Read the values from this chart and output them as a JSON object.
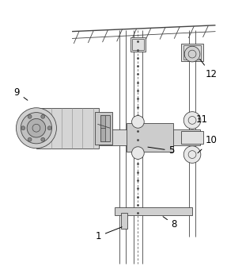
{
  "background_color": "#ffffff",
  "line_color": "#444444",
  "label_color": "#000000",
  "figure_width": 2.87,
  "figure_height": 3.45,
  "dpi": 100
}
